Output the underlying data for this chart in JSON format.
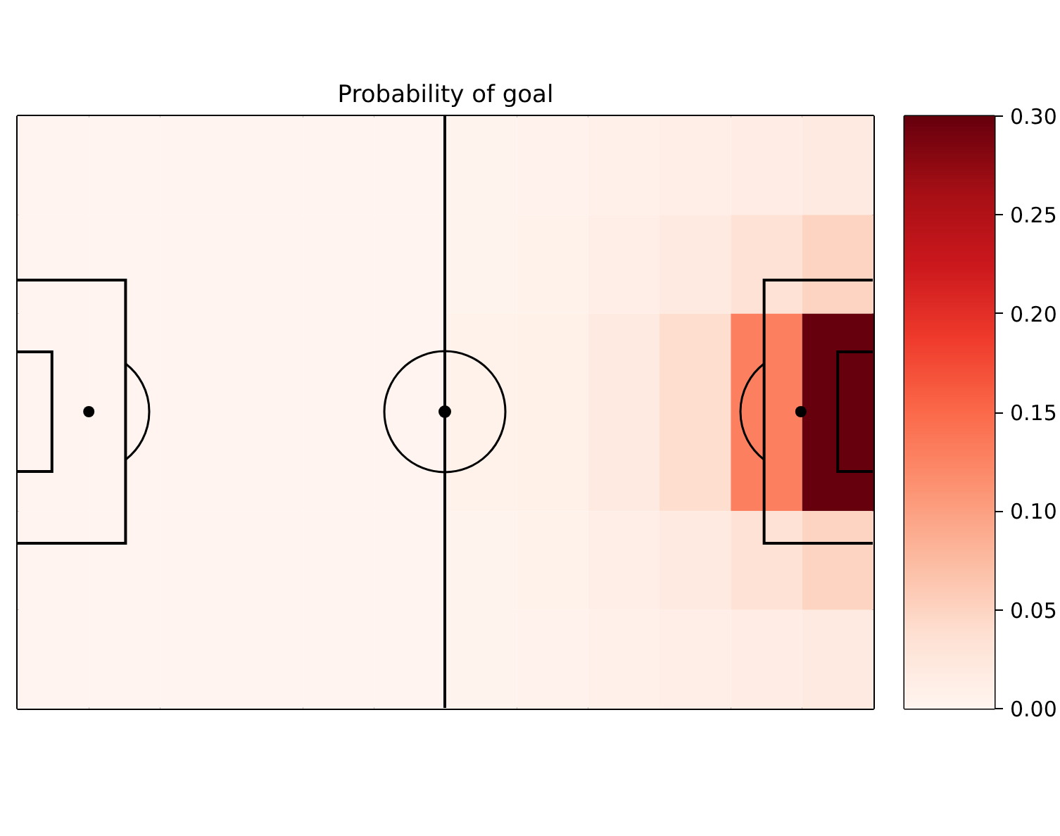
{
  "chart_data": {
    "type": "heatmap",
    "title": "Probability of goal",
    "categories": [
      null,
      null,
      null,
      null,
      null,
      null,
      null,
      null,
      null,
      null,
      null,
      null
    ],
    "y_categories": [
      null,
      null,
      null,
      null,
      null,
      null
    ],
    "cells": [
      [
        0.002,
        0.002,
        0.002,
        0.002,
        0.002,
        0.002,
        0.004,
        0.005,
        0.008,
        0.012,
        0.016,
        0.02
      ],
      [
        0.002,
        0.002,
        0.002,
        0.002,
        0.002,
        0.002,
        0.004,
        0.007,
        0.012,
        0.02,
        0.035,
        0.05
      ],
      [
        0.002,
        0.002,
        0.002,
        0.002,
        0.002,
        0.002,
        0.006,
        0.01,
        0.02,
        0.04,
        0.13,
        0.3
      ],
      [
        0.002,
        0.002,
        0.002,
        0.002,
        0.002,
        0.002,
        0.006,
        0.01,
        0.02,
        0.04,
        0.13,
        0.3
      ],
      [
        0.002,
        0.002,
        0.002,
        0.002,
        0.002,
        0.002,
        0.004,
        0.007,
        0.012,
        0.02,
        0.035,
        0.05
      ],
      [
        0.002,
        0.002,
        0.002,
        0.002,
        0.002,
        0.002,
        0.004,
        0.005,
        0.008,
        0.012,
        0.016,
        0.02
      ]
    ],
    "clim": [
      0,
      0.3
    ],
    "cticks": [
      {
        "value": 0,
        "label": "0.00"
      },
      {
        "value": 0.05,
        "label": "0.05"
      },
      {
        "value": 0.1,
        "label": "0.10"
      },
      {
        "value": 0.15,
        "label": "0.15"
      },
      {
        "value": 0.2,
        "label": "0.20"
      },
      {
        "value": 0.25,
        "label": "0.25"
      },
      {
        "value": 0.3,
        "label": "0.30"
      }
    ]
  }
}
